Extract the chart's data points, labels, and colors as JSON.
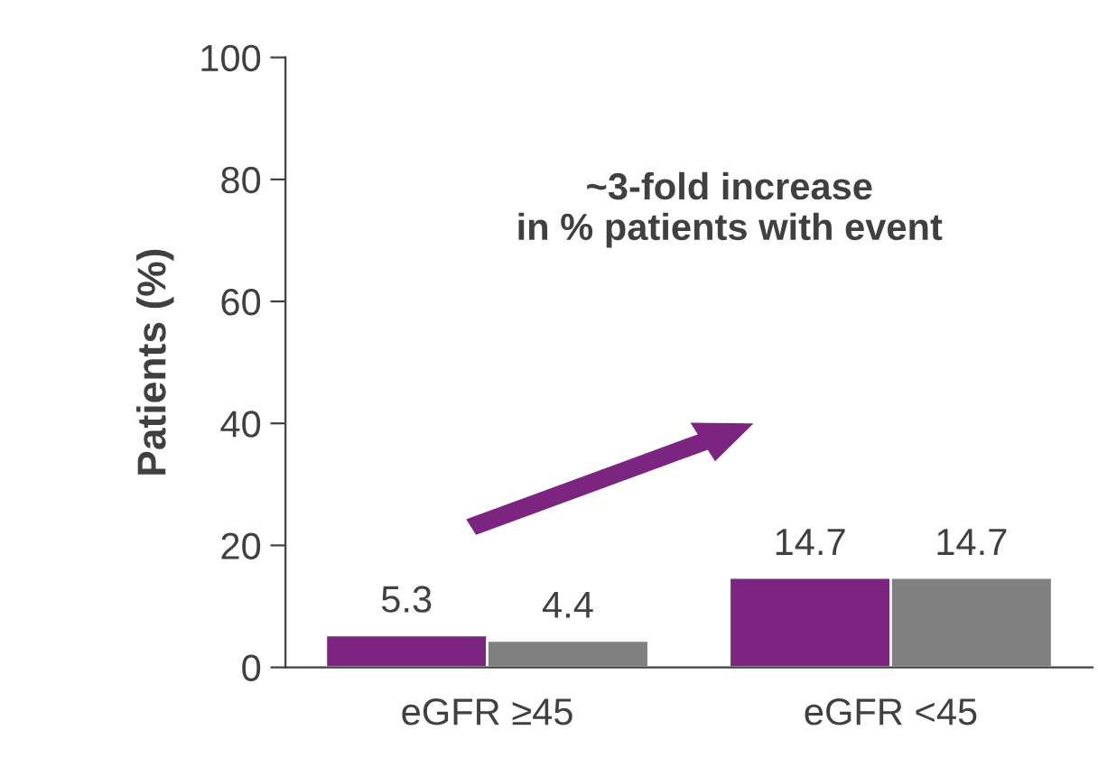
{
  "chart_data": {
    "type": "bar",
    "ylabel": "Patients (%)",
    "categories": [
      "eGFR ≥45",
      "eGFR <45"
    ],
    "series": [
      {
        "color": "#7b2580",
        "values": [
          5.3,
          14.7
        ]
      },
      {
        "color": "#808080",
        "values": [
          4.4,
          14.7
        ]
      }
    ],
    "ylim": [
      0,
      100
    ],
    "yticks": [
      0,
      20,
      40,
      60,
      80,
      100
    ],
    "grid": false,
    "legend": false,
    "data_labels": true,
    "annotations": [
      "~3-fold increase\nin % patients with event"
    ]
  }
}
